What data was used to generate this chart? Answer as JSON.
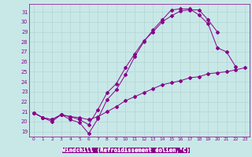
{
  "background_color": "#c8e8e8",
  "line_color": "#880088",
  "grid_color": "#aacccc",
  "xlabel": "Windchill (Refroidissement éolien,°C)",
  "xlabel_color": "#ffffff",
  "xlabel_bg": "#880088",
  "ylim": [
    18.5,
    31.8
  ],
  "xlim": [
    -0.5,
    23.5
  ],
  "yticks": [
    19,
    20,
    21,
    22,
    23,
    24,
    25,
    26,
    27,
    28,
    29,
    30,
    31
  ],
  "xticks": [
    0,
    1,
    2,
    3,
    4,
    5,
    6,
    7,
    8,
    9,
    10,
    11,
    12,
    13,
    14,
    15,
    16,
    17,
    18,
    19,
    20,
    21,
    22,
    23
  ],
  "line1_x": [
    0,
    1,
    2,
    3,
    4,
    5,
    6,
    7,
    8,
    9,
    10,
    11,
    12,
    13,
    14,
    15,
    16,
    17,
    18,
    19,
    20,
    21,
    22
  ],
  "line1_y": [
    20.9,
    20.4,
    20.2,
    20.7,
    20.2,
    19.9,
    18.8,
    20.3,
    22.2,
    23.2,
    24.7,
    26.5,
    28.0,
    29.2,
    30.2,
    31.2,
    31.3,
    31.3,
    30.7,
    29.8,
    27.4,
    27.0,
    25.5
  ],
  "line2_x": [
    0,
    1,
    2,
    3,
    4,
    5,
    6,
    7,
    8,
    9,
    10,
    11,
    12,
    13,
    14,
    15,
    16,
    17,
    18,
    19,
    20
  ],
  "line2_y": [
    20.9,
    20.4,
    20.0,
    20.7,
    20.5,
    20.2,
    19.7,
    21.2,
    22.9,
    23.8,
    25.4,
    26.8,
    28.1,
    29.0,
    30.0,
    30.6,
    31.1,
    31.2,
    31.2,
    30.2,
    29.0
  ],
  "line3_x": [
    0,
    1,
    2,
    3,
    4,
    5,
    6,
    7,
    8,
    9,
    10,
    11,
    12,
    13,
    14,
    15,
    16,
    17,
    18,
    19,
    20,
    21,
    22,
    23
  ],
  "line3_y": [
    20.9,
    20.4,
    20.2,
    20.7,
    20.5,
    20.4,
    20.2,
    20.5,
    21.0,
    21.5,
    22.1,
    22.5,
    22.9,
    23.3,
    23.7,
    23.9,
    24.1,
    24.4,
    24.5,
    24.8,
    24.9,
    25.0,
    25.2,
    25.4
  ]
}
